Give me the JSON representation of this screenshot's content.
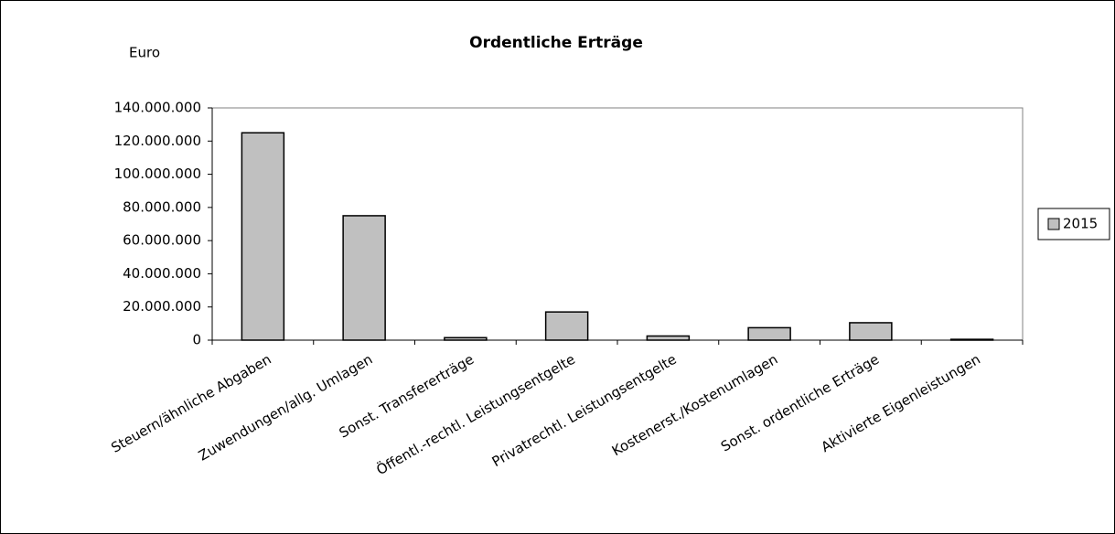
{
  "chart_data": {
    "type": "bar",
    "title": "Ordentliche Erträge",
    "y_label": "Euro",
    "categories": [
      "Steuern/ähnliche Abgaben",
      "Zuwendungen/allg. Umlagen",
      "Sonst. Transfererträge",
      "Öffentl.-rechtl. Leistungsentgelte",
      "Privatrechtl. Leistungsentgelte",
      "Kostenerst./Kostenumlagen",
      "Sonst. ordentliche Erträge",
      "Aktivierte Eigenleistungen"
    ],
    "series": [
      {
        "name": "2015",
        "color": "#c0c0c0",
        "values": [
          125000000,
          75000000,
          1500000,
          17000000,
          2500000,
          7500000,
          10500000,
          500000
        ]
      }
    ],
    "ylim": [
      0,
      140000000
    ],
    "yticks": [
      0,
      {
        "value": 20000000,
        "label": "20.000.000"
      },
      {
        "value": 40000000,
        "label": "40.000.000"
      },
      {
        "value": 60000000,
        "label": "60.000.000"
      },
      {
        "value": 80000000,
        "label": "80.000.000"
      },
      {
        "value": 100000000,
        "label": "100.000.000"
      },
      {
        "value": 120000000,
        "label": "120.000.000"
      },
      {
        "value": 140000000,
        "label": "140.000.000"
      }
    ],
    "legend": "right"
  }
}
